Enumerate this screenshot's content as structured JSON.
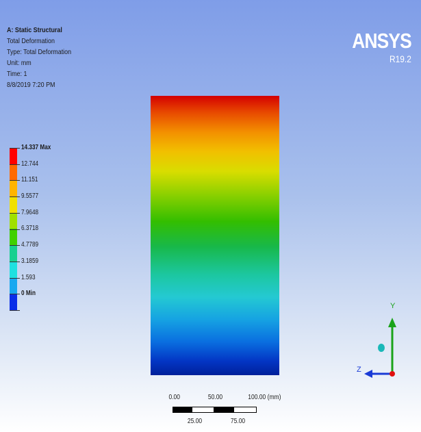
{
  "header": {
    "analysis_title": "A: Static Structural",
    "result_name": "Total Deformation",
    "type_line": "Type: Total Deformation",
    "unit_line": "Unit: mm",
    "time_line": "Time: 1",
    "timestamp": "8/8/2019 7:20 PM"
  },
  "brand": {
    "name": "ANSYS",
    "version": "R19.2"
  },
  "legend": {
    "labels": [
      "14.337 Max",
      "12.744",
      "11.151",
      "9.5577",
      "7.9648",
      "6.3718",
      "4.7789",
      "3.1859",
      "1.593",
      "0 Min"
    ],
    "colors": [
      "#ff0000",
      "#ff6a00",
      "#ffb400",
      "#f0e000",
      "#a0e000",
      "#3fd000",
      "#18d090",
      "#1fe0e0",
      "#18a8f0",
      "#0a2ee8"
    ]
  },
  "model": {
    "gradient_top": "#d40000",
    "gradient_bottom": "#00209a"
  },
  "scale_bar": {
    "top_labels": [
      "0.00",
      "50.00",
      "100.00 (mm)"
    ],
    "bottom_labels": [
      "25.00",
      "75.00"
    ]
  },
  "triad": {
    "y_label": "Y",
    "z_label": "Z",
    "y_color": "#1aa31a",
    "z_color": "#1a3bd6",
    "x_color": "#e01010",
    "center_color": "#1ab8b8"
  }
}
